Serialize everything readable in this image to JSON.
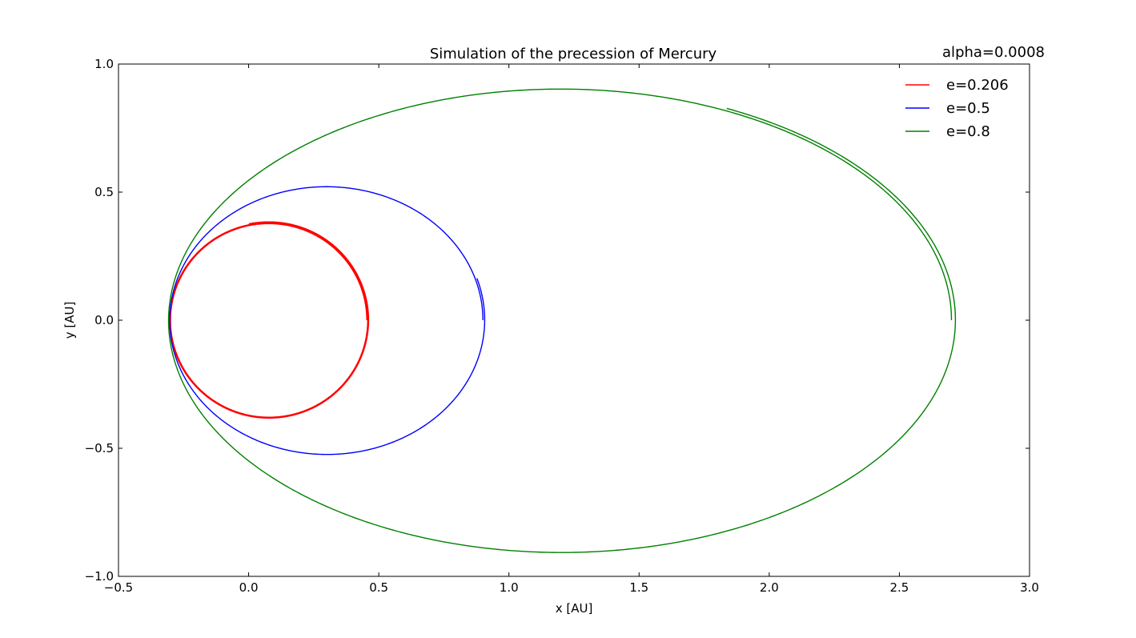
{
  "chart_data": {
    "type": "line",
    "title": "Simulation of the precession of Mercury",
    "annotation": "alpha=0.0008",
    "xlabel": "x [AU]",
    "ylabel": "y [AU]",
    "xlim": [
      -0.5,
      3.0
    ],
    "ylim": [
      -1.0,
      1.0
    ],
    "xticks": [
      -0.5,
      0.0,
      0.5,
      1.0,
      1.5,
      2.0,
      2.5,
      3.0
    ],
    "yticks": [
      -1.0,
      -0.5,
      0.0,
      0.5,
      1.0
    ],
    "xtick_labels": [
      "−0.5",
      "0.0",
      "0.5",
      "1.0",
      "1.5",
      "2.0",
      "2.5",
      "3.0"
    ],
    "ytick_labels": [
      "−1.0",
      "−0.5",
      "0.0",
      "0.5",
      "1.0"
    ],
    "grid": false,
    "legend_position": "top-right",
    "series": [
      {
        "name": "e=0.206",
        "color": "#ff0000",
        "eccentricity": 0.206,
        "perihelion_x": -0.3,
        "aphelion_x": 0.4556,
        "semi_minor": 0.3778,
        "line_width": 2.5,
        "end_point": [
          0.0,
          0.38
        ]
      },
      {
        "name": "e=0.5",
        "color": "#0000ff",
        "eccentricity": 0.5,
        "perihelion_x": -0.3,
        "aphelion_x": 0.9,
        "semi_minor": 0.5196,
        "line_width": 1.4,
        "end_point": [
          0.9,
          0.17
        ]
      },
      {
        "name": "e=0.8",
        "color": "#008000",
        "eccentricity": 0.8,
        "perihelion_x": -0.3,
        "aphelion_x": 2.7,
        "semi_minor": 0.9,
        "line_width": 1.4,
        "end_point": [
          1.87,
          0.87
        ]
      }
    ]
  }
}
